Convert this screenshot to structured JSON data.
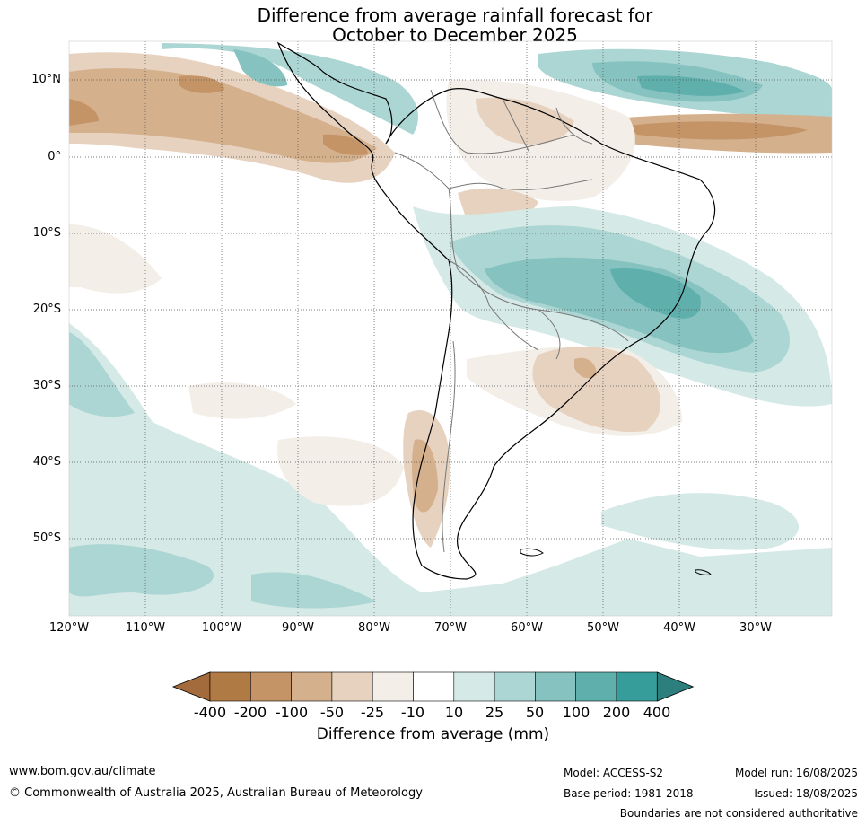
{
  "title_line1": "Difference from average rainfall forecast for",
  "title_line2": "October to December 2025",
  "lat_labels": [
    "10°N",
    "0°",
    "10°S",
    "20°S",
    "30°S",
    "40°S",
    "50°S"
  ],
  "lon_labels": [
    "120°W",
    "110°W",
    "100°W",
    "90°W",
    "80°W",
    "70°W",
    "60°W",
    "50°W",
    "40°W",
    "30°W"
  ],
  "colorbar": {
    "ticks": [
      "-400",
      "-200",
      "-100",
      "-50",
      "-25",
      "-10",
      "10",
      "25",
      "50",
      "100",
      "200",
      "400"
    ],
    "colors": [
      "#a36b3c",
      "#b07a45",
      "#c49467",
      "#d5b08d",
      "#e6d2bf",
      "#f3eee8",
      "#ffffff",
      "#d5e9e7",
      "#acd6d3",
      "#86c3c0",
      "#5fb0ad",
      "#379d9a",
      "#2c7f7d"
    ],
    "title": "Difference from average (mm)"
  },
  "footer": {
    "website": "www.bom.gov.au/climate",
    "copyright": "© Commonwealth of Australia 2025, Australian Bureau of Meteorology",
    "model": "Model: ACCESS-S2",
    "base_period": "Base period: 1981-2018",
    "model_run": "Model run: 16/08/2025",
    "issued": "Issued: 18/08/2025",
    "disclaimer": "Boundaries are not considered authoritative"
  }
}
